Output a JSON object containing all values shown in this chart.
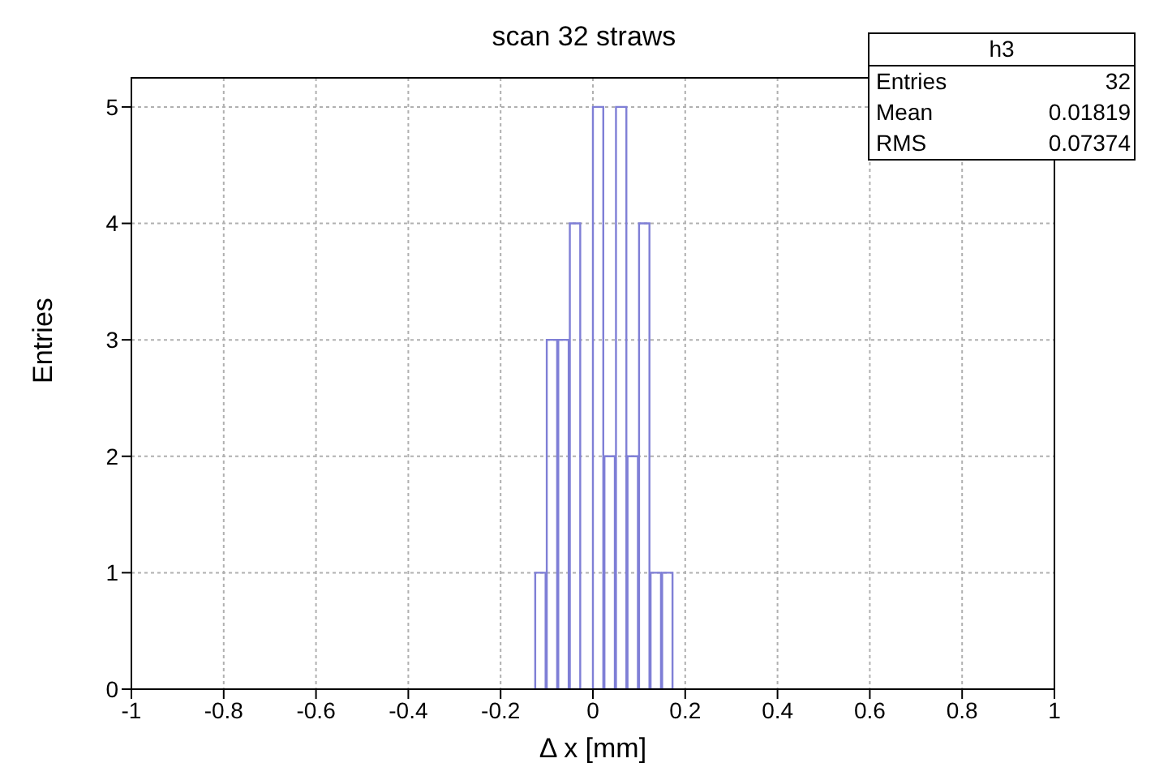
{
  "chart_data": {
    "type": "histogram",
    "title": "scan 32 straws",
    "xlabel": "Δ x [mm]",
    "ylabel": "Entries",
    "bins": [
      -0.125,
      -0.1,
      -0.075,
      -0.05,
      -0.025,
      0,
      0.025,
      0.05,
      0.075,
      0.1,
      0.125,
      0.15,
      0.175
    ],
    "values": [
      1,
      3,
      3,
      4,
      0,
      5,
      2,
      5,
      2,
      4,
      1,
      1
    ],
    "color": "#7f7fd6",
    "xlim": [
      -1,
      1
    ],
    "xticks": [
      -1,
      -0.8,
      -0.6,
      -0.4,
      -0.2,
      0,
      0.2,
      0.4,
      0.6,
      0.8,
      1
    ],
    "ylim": [
      0,
      5.25
    ],
    "yticks": [
      0,
      1,
      2,
      3,
      4,
      5
    ],
    "grid": true,
    "annotations": [
      "h3",
      "Entries",
      "32",
      "Mean",
      "0.01819",
      "RMS",
      "0.07374"
    ]
  }
}
